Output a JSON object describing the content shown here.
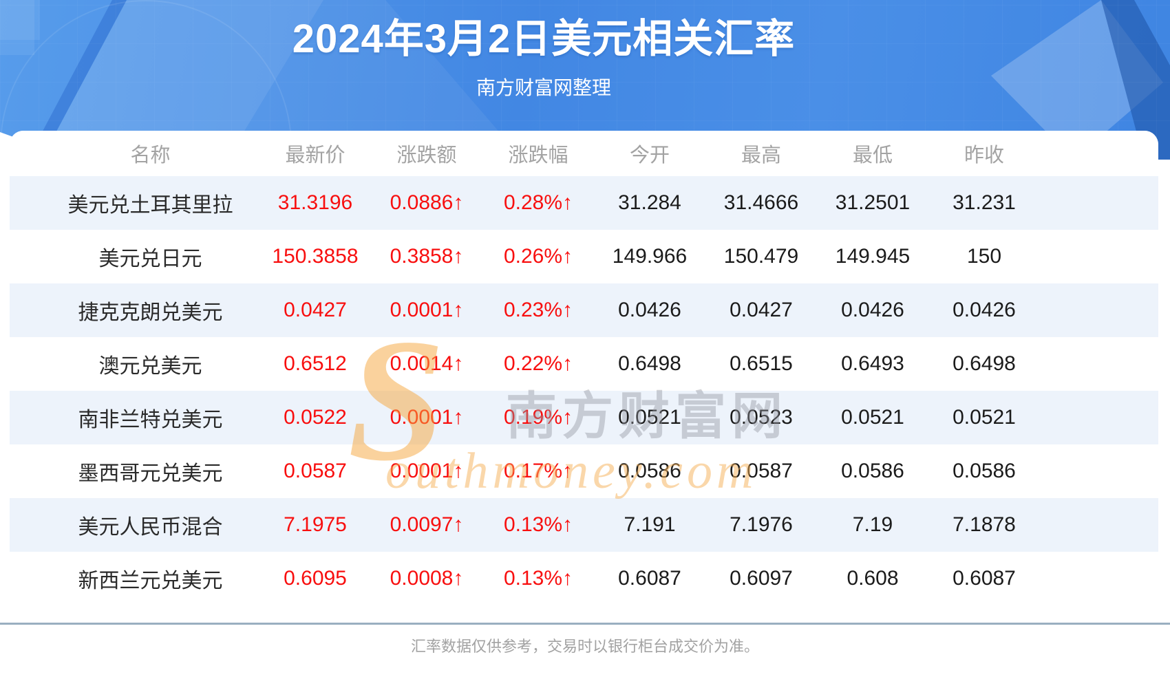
{
  "hero": {
    "title": "2024年3月2日美元相关汇率",
    "subtitle": "南方财富网整理"
  },
  "watermark": {
    "s": "S",
    "cn": "南方财富网",
    "en": "outhmoney.com"
  },
  "footer": {
    "note": "汇率数据仅供参考，交易时以银行柜台成交价为准。"
  },
  "colors": {
    "hero_blue": "#4287e3",
    "alt_row_bg": "#edf3fb",
    "up_red": "#f80f0f",
    "header_gray": "#a3a3a3",
    "divider": "#9aafc0"
  },
  "chart_data": {
    "type": "table",
    "title": "2024年3月2日美元相关汇率",
    "source_note": "南方财富网整理",
    "columns": [
      "名称",
      "最新价",
      "涨跌额",
      "涨跌幅",
      "今开",
      "最高",
      "最低",
      "昨收"
    ],
    "rows": [
      [
        "美元兑土耳其里拉",
        "31.3196",
        "0.0886↑",
        "0.28%↑",
        "31.284",
        "31.4666",
        "31.2501",
        "31.231"
      ],
      [
        "美元兑日元",
        "150.3858",
        "0.3858↑",
        "0.26%↑",
        "149.966",
        "150.479",
        "149.945",
        "150"
      ],
      [
        "捷克克朗兑美元",
        "0.0427",
        "0.0001↑",
        "0.23%↑",
        "0.0426",
        "0.0427",
        "0.0426",
        "0.0426"
      ],
      [
        "澳元兑美元",
        "0.6512",
        "0.0014↑",
        "0.22%↑",
        "0.6498",
        "0.6515",
        "0.6493",
        "0.6498"
      ],
      [
        "南非兰特兑美元",
        "0.0522",
        "0.0001↑",
        "0.19%↑",
        "0.0521",
        "0.0523",
        "0.0521",
        "0.0521"
      ],
      [
        "墨西哥元兑美元",
        "0.0587",
        "0.0001↑",
        "0.17%↑",
        "0.0586",
        "0.0587",
        "0.0586",
        "0.0586"
      ],
      [
        "美元人民币混合",
        "7.1975",
        "0.0097↑",
        "0.13%↑",
        "7.191",
        "7.1976",
        "7.19",
        "7.1878"
      ],
      [
        "新西兰元兑美元",
        "0.6095",
        "0.0008↑",
        "0.13%↑",
        "0.6087",
        "0.6097",
        "0.608",
        "0.6087"
      ]
    ]
  }
}
